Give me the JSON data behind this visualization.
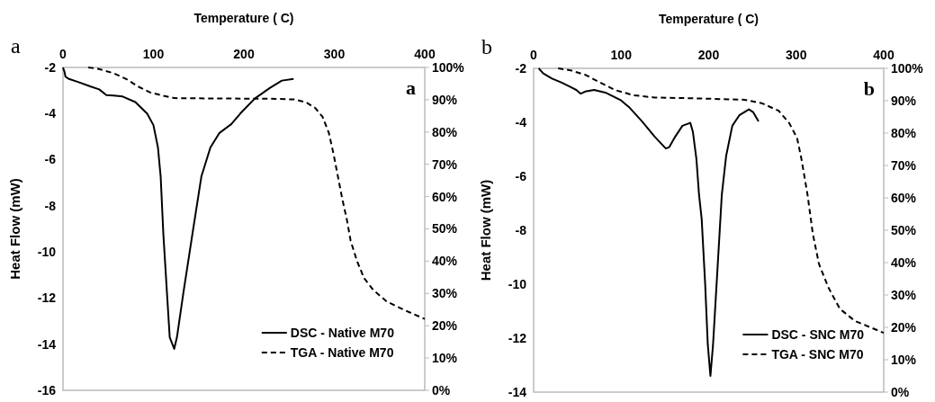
{
  "chart_data": [
    {
      "type": "line",
      "xlabel": "Temperature ( C)",
      "ylabel": "Heat Flow (mW)",
      "annotations": [
        "a",
        "a"
      ],
      "legend": "bottom right",
      "xlim": [
        0,
        400
      ],
      "xticks": [
        0,
        100,
        200,
        300,
        400
      ],
      "ylim": [
        -16,
        -2
      ],
      "yticks": [
        -2,
        -4,
        -6,
        -8,
        -10,
        -12,
        -14,
        -16
      ],
      "y2lim": [
        0,
        100
      ],
      "y2ticks": [
        {
          "value": 0,
          "label": "0%"
        },
        {
          "value": 10,
          "label": "10%"
        },
        {
          "value": 20,
          "label": "20%"
        },
        {
          "value": 30,
          "label": "30%"
        },
        {
          "value": 40,
          "label": "40%"
        },
        {
          "value": 50,
          "label": "50%"
        },
        {
          "value": 60,
          "label": "60%"
        },
        {
          "value": 70,
          "label": "70%"
        },
        {
          "value": 80,
          "label": "80%"
        },
        {
          "value": 90,
          "label": "90%"
        },
        {
          "value": 100,
          "label": "100%"
        }
      ],
      "grid": false,
      "series": [
        {
          "name": "DSC - Native M70",
          "color": "#000000",
          "line_style": "solid",
          "x": [
            0,
            1.7,
            2.7,
            6.6,
            16.6,
            30,
            40,
            48,
            56,
            66,
            80,
            93,
            100,
            105,
            108,
            111,
            115,
            118,
            122,
            123,
            126,
            133,
            143,
            153,
            163,
            173,
            186,
            196,
            212,
            229,
            242,
            255
          ],
          "values": [
            -2,
            -2.2,
            -2.4,
            -2.5,
            -2.63,
            -2.82,
            -2.95,
            -3.2,
            -3.22,
            -3.26,
            -3.5,
            -4,
            -4.5,
            -5.47,
            -6.73,
            -9.25,
            -11.8,
            -13.7,
            -14.1,
            -14.2,
            -13.7,
            -11.8,
            -9.25,
            -6.73,
            -5.47,
            -4.84,
            -4.46,
            -4,
            -3.35,
            -2.88,
            -2.57,
            -2.5
          ]
        },
        {
          "name": "TGA - Native M70",
          "color": "#000000",
          "line_style": "dashed",
          "axis": "y2",
          "x": [
            28,
            40,
            56,
            70,
            83,
            96,
            110,
            123,
            163,
            229,
            256,
            269,
            279,
            287,
            294,
            299,
            304,
            309,
            314,
            318,
            325,
            333,
            343,
            358,
            378,
            400
          ],
          "values": [
            100,
            99.5,
            98.2,
            96.4,
            94.1,
            92.3,
            91.3,
            90.5,
            90.4,
            90.3,
            90.1,
            89.2,
            87.4,
            84.7,
            79.7,
            73.4,
            66.2,
            59,
            52.7,
            46.4,
            40.1,
            34.7,
            31.1,
            27.5,
            24.8,
            22.1
          ]
        }
      ]
    },
    {
      "type": "line",
      "xlabel": "Temperature ( C)",
      "ylabel": "Heat Flow (mW)",
      "annotations": [
        "b",
        "b"
      ],
      "legend": "bottom right",
      "xlim": [
        0,
        400
      ],
      "xticks": [
        0,
        100,
        200,
        300,
        400
      ],
      "ylim": [
        -14,
        -2
      ],
      "yticks": [
        -2,
        -4,
        -6,
        -8,
        -10,
        -12,
        -14
      ],
      "y2lim": [
        0,
        100
      ],
      "y2ticks": [
        {
          "value": 0,
          "label": "0%"
        },
        {
          "value": 10,
          "label": "10%"
        },
        {
          "value": 20,
          "label": "20%"
        },
        {
          "value": 30,
          "label": "30%"
        },
        {
          "value": 40,
          "label": "40%"
        },
        {
          "value": 50,
          "label": "50%"
        },
        {
          "value": 60,
          "label": "60%"
        },
        {
          "value": 70,
          "label": "70%"
        },
        {
          "value": 80,
          "label": "80%"
        },
        {
          "value": 90,
          "label": "90%"
        },
        {
          "value": 100,
          "label": "100%"
        }
      ],
      "grid": false,
      "series": [
        {
          "name": "DSC - SNC M70",
          "color": "#000000",
          "line_style": "solid",
          "x": [
            5.8,
            11,
            21,
            31.5,
            42,
            48.7,
            53.8,
            59,
            69,
            83,
            100,
            110,
            124,
            138,
            151,
            155,
            162,
            170,
            179,
            182,
            186,
            189,
            192,
            196,
            199,
            202,
            205,
            210,
            215,
            220,
            227,
            235,
            246,
            251,
            257
          ],
          "values": [
            -2,
            -2.19,
            -2.38,
            -2.52,
            -2.69,
            -2.8,
            -2.94,
            -2.86,
            -2.8,
            -2.91,
            -3.19,
            -3.47,
            -3.97,
            -4.52,
            -4.97,
            -4.92,
            -4.52,
            -4.13,
            -4.02,
            -4.36,
            -5.36,
            -6.69,
            -7.58,
            -10,
            -12.24,
            -13.4,
            -12.24,
            -9.47,
            -6.69,
            -5.24,
            -4.13,
            -3.74,
            -3.52,
            -3.63,
            -3.97
          ]
        },
        {
          "name": "TGA - SNC M70",
          "color": "#000000",
          "line_style": "dashed",
          "axis": "y2",
          "x": [
            28,
            42,
            59,
            76,
            93,
            114,
            138,
            189,
            241,
            261,
            280,
            292,
            301,
            306,
            313,
            319,
            326,
            337,
            350,
            367,
            400
          ],
          "values": [
            100,
            99.4,
            98,
            95.6,
            93.3,
            91.7,
            91,
            90.7,
            90.3,
            89.2,
            86.9,
            83.1,
            78.5,
            72,
            60.9,
            48.9,
            39.6,
            32.2,
            25.7,
            22,
            18.3
          ]
        }
      ]
    }
  ]
}
